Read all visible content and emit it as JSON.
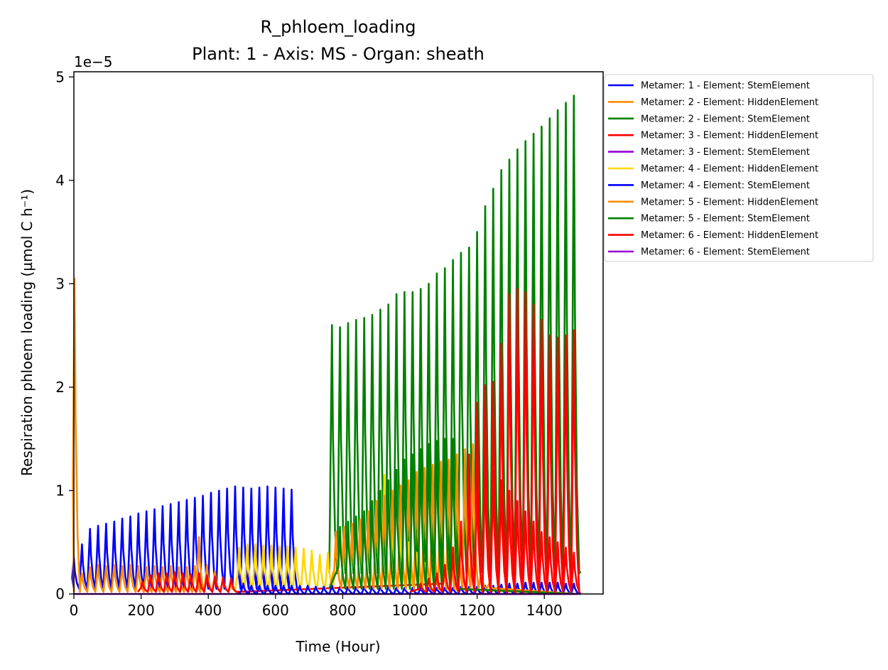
{
  "chart_data": {
    "type": "line",
    "title": "R_phloem_loading",
    "subtitle": "Plant: 1 - Axis: MS - Organ: sheath",
    "xlabel": "Time (Hour)",
    "ylabel": "Respiration phloem loading (µmol C h⁻¹)",
    "y_multiplier": "1e−5",
    "xlim": [
      0,
      1575
    ],
    "ylim": [
      0,
      5.05
    ],
    "x_ticks": [
      0,
      200,
      400,
      600,
      800,
      1000,
      1200,
      1400
    ],
    "x_tick_labels": [
      "0",
      "200",
      "400",
      "600",
      "800",
      "1000",
      "1200",
      "1400"
    ],
    "y_ticks": [
      0,
      1,
      2,
      3,
      4,
      5
    ],
    "y_tick_labels": [
      "0",
      "1",
      "2",
      "3",
      "4",
      "5"
    ],
    "grid": false,
    "legend_position": "outside-upper-right",
    "series": [
      {
        "name": "Metamer: 1 - Element: StemElement",
        "color": "#0000ff",
        "active": [
          0,
          660
        ],
        "peaks": [
          [
            0,
            0.35
          ],
          [
            24,
            0.48
          ],
          [
            48,
            0.63
          ],
          [
            72,
            0.66
          ],
          [
            96,
            0.68
          ],
          [
            120,
            0.7
          ],
          [
            144,
            0.73
          ],
          [
            168,
            0.75
          ],
          [
            192,
            0.78
          ],
          [
            216,
            0.8
          ],
          [
            240,
            0.82
          ],
          [
            264,
            0.85
          ],
          [
            288,
            0.87
          ],
          [
            312,
            0.89
          ],
          [
            336,
            0.91
          ],
          [
            360,
            0.93
          ],
          [
            384,
            0.95
          ],
          [
            408,
            0.98
          ],
          [
            432,
            1.0
          ],
          [
            456,
            1.02
          ],
          [
            480,
            1.04
          ],
          [
            504,
            1.03
          ],
          [
            528,
            1.02
          ],
          [
            552,
            1.03
          ],
          [
            576,
            1.04
          ],
          [
            600,
            1.03
          ],
          [
            624,
            1.02
          ],
          [
            648,
            1.01
          ]
        ],
        "trough": 0.05,
        "end": 0.0
      },
      {
        "name": "Metamer: 2 - Element: HiddenElement",
        "color": "#ff8c00",
        "active": [
          0,
          490
        ],
        "peaks": [
          [
            2,
            3.05
          ],
          [
            24,
            0.2
          ],
          [
            48,
            0.26
          ],
          [
            72,
            0.28
          ],
          [
            96,
            0.27
          ],
          [
            120,
            0.28
          ],
          [
            144,
            0.27
          ],
          [
            168,
            0.28
          ],
          [
            192,
            0.27
          ],
          [
            216,
            0.26
          ],
          [
            240,
            0.27
          ],
          [
            264,
            0.26
          ],
          [
            288,
            0.27
          ],
          [
            312,
            0.26
          ],
          [
            336,
            0.26
          ],
          [
            360,
            0.27
          ],
          [
            372,
            0.55
          ],
          [
            396,
            0.28
          ],
          [
            420,
            0.22
          ],
          [
            444,
            0.15
          ],
          [
            468,
            0.1
          ]
        ],
        "trough": 0.02,
        "end": 0.0
      },
      {
        "name": "Metamer: 2 - Element: StemElement",
        "color": "#008000",
        "active": [
          760,
          1500
        ],
        "peaks": [
          [
            768,
            2.6
          ],
          [
            792,
            2.58
          ],
          [
            816,
            2.62
          ],
          [
            840,
            2.65
          ],
          [
            864,
            2.67
          ],
          [
            888,
            2.7
          ],
          [
            912,
            2.75
          ],
          [
            936,
            2.8
          ],
          [
            960,
            2.9
          ],
          [
            984,
            2.92
          ],
          [
            1008,
            2.92
          ],
          [
            1032,
            2.95
          ],
          [
            1056,
            3.0
          ],
          [
            1080,
            3.1
          ],
          [
            1104,
            3.15
          ],
          [
            1128,
            3.23
          ],
          [
            1152,
            3.3
          ],
          [
            1176,
            3.35
          ],
          [
            1200,
            3.5
          ],
          [
            1224,
            3.75
          ],
          [
            1248,
            3.92
          ],
          [
            1272,
            4.1
          ],
          [
            1296,
            4.2
          ],
          [
            1320,
            4.3
          ],
          [
            1344,
            4.38
          ],
          [
            1368,
            4.45
          ],
          [
            1392,
            4.52
          ],
          [
            1416,
            4.6
          ],
          [
            1440,
            4.68
          ],
          [
            1464,
            4.75
          ],
          [
            1488,
            4.82
          ]
        ],
        "trough": 0.2,
        "end": 0.22
      },
      {
        "name": "Metamer: 3 - Element: HiddenElement",
        "color": "#ff0000",
        "active": [
          190,
          1500
        ],
        "peaks": [
          [
            204,
            0.12
          ],
          [
            228,
            0.18
          ],
          [
            252,
            0.2
          ],
          [
            276,
            0.2
          ],
          [
            300,
            0.21
          ],
          [
            324,
            0.2
          ],
          [
            348,
            0.19
          ],
          [
            372,
            0.2
          ],
          [
            396,
            0.18
          ],
          [
            420,
            0.17
          ],
          [
            444,
            0.16
          ],
          [
            468,
            0.15
          ],
          [
            1104,
            0.25
          ],
          [
            1128,
            0.45
          ],
          [
            1152,
            0.7
          ],
          [
            1176,
            1.35
          ],
          [
            1200,
            1.85
          ],
          [
            1224,
            2.02
          ],
          [
            1248,
            2.05
          ],
          [
            1272,
            2.42
          ],
          [
            1296,
            2.9
          ],
          [
            1320,
            2.95
          ],
          [
            1344,
            2.92
          ],
          [
            1368,
            2.8
          ],
          [
            1392,
            2.65
          ],
          [
            1416,
            2.5
          ],
          [
            1440,
            2.48
          ],
          [
            1464,
            2.5
          ],
          [
            1488,
            2.55
          ]
        ],
        "trough": 0.02,
        "end": 0.0
      },
      {
        "name": "Metamer: 3 - Element: StemElement",
        "color": "#9400d3",
        "active": [
          0,
          1500
        ],
        "peaks": [],
        "trough": 0.0,
        "end": 0.0
      },
      {
        "name": "Metamer: 4 - Element: HiddenElement",
        "color": "#ffd700",
        "active": [
          480,
          1500
        ],
        "peaks": [
          [
            492,
            0.45
          ],
          [
            516,
            0.48
          ],
          [
            540,
            0.48
          ],
          [
            564,
            0.47
          ],
          [
            588,
            0.47
          ],
          [
            612,
            0.46
          ],
          [
            636,
            0.46
          ],
          [
            660,
            0.45
          ],
          [
            684,
            0.44
          ],
          [
            708,
            0.42
          ],
          [
            732,
            0.38
          ],
          [
            756,
            0.4
          ],
          [
            780,
            0.6
          ],
          [
            804,
            0.62
          ],
          [
            828,
            0.64
          ],
          [
            852,
            0.66
          ],
          [
            876,
            0.72
          ],
          [
            900,
            0.86
          ],
          [
            924,
            1.15
          ],
          [
            948,
            0.75
          ],
          [
            972,
            0.65
          ],
          [
            996,
            0.5
          ],
          [
            1020,
            0.4
          ],
          [
            1044,
            0.3
          ]
        ],
        "trough": 0.05,
        "end": 0.0
      },
      {
        "name": "Metamer: 4 - Element: StemElement",
        "color": "#0000ff",
        "active": [
          490,
          1500
        ],
        "peaks": [
          [
            504,
            0.1
          ],
          [
            528,
            0.08
          ],
          [
            552,
            0.08
          ],
          [
            576,
            0.08
          ],
          [
            600,
            0.08
          ],
          [
            624,
            0.08
          ],
          [
            648,
            0.08
          ],
          [
            672,
            0.08
          ],
          [
            696,
            0.08
          ],
          [
            720,
            0.07
          ],
          [
            744,
            0.07
          ],
          [
            768,
            0.08
          ],
          [
            792,
            0.07
          ],
          [
            816,
            0.07
          ],
          [
            840,
            0.07
          ],
          [
            864,
            0.07
          ],
          [
            888,
            0.07
          ],
          [
            912,
            0.07
          ],
          [
            936,
            0.07
          ],
          [
            960,
            0.06
          ],
          [
            984,
            0.06
          ],
          [
            1008,
            0.06
          ],
          [
            1032,
            0.06
          ],
          [
            1056,
            0.06
          ],
          [
            1080,
            0.06
          ],
          [
            1104,
            0.06
          ],
          [
            1128,
            0.06
          ],
          [
            1152,
            0.07
          ],
          [
            1176,
            0.07
          ],
          [
            1200,
            0.07
          ],
          [
            1224,
            0.08
          ],
          [
            1248,
            0.08
          ],
          [
            1272,
            0.09
          ],
          [
            1296,
            0.1
          ],
          [
            1320,
            0.1
          ],
          [
            1344,
            0.11
          ],
          [
            1368,
            0.11
          ],
          [
            1392,
            0.11
          ],
          [
            1416,
            0.11
          ],
          [
            1440,
            0.11
          ],
          [
            1464,
            0.1
          ],
          [
            1488,
            0.1
          ]
        ],
        "trough": 0.0,
        "end": 0.0
      },
      {
        "name": "Metamer: 5 - Element: HiddenElement",
        "color": "#ff8c00",
        "active": [
          760,
          1500
        ],
        "peaks": [
          [
            780,
            0.6
          ],
          [
            804,
            0.65
          ],
          [
            828,
            0.68
          ],
          [
            852,
            0.72
          ],
          [
            876,
            0.8
          ],
          [
            900,
            0.9
          ],
          [
            924,
            0.95
          ],
          [
            948,
            1.0
          ],
          [
            972,
            1.05
          ],
          [
            996,
            1.1
          ],
          [
            1020,
            1.18
          ],
          [
            1044,
            1.22
          ],
          [
            1068,
            1.25
          ],
          [
            1092,
            1.28
          ],
          [
            1116,
            1.3
          ],
          [
            1140,
            1.35
          ],
          [
            1164,
            1.4
          ],
          [
            1188,
            1.45
          ],
          [
            1212,
            0.2
          ],
          [
            1236,
            0.1
          ],
          [
            1260,
            0.06
          ]
        ],
        "trough": 0.05,
        "end": 0.0
      },
      {
        "name": "Metamer: 5 - Element: StemElement",
        "color": "#008000",
        "active": [
          760,
          1500
        ],
        "peaks": [
          [
            792,
            0.65
          ],
          [
            816,
            0.7
          ],
          [
            840,
            0.75
          ],
          [
            864,
            0.8
          ],
          [
            888,
            0.9
          ],
          [
            912,
            1.0
          ],
          [
            936,
            1.1
          ],
          [
            960,
            1.2
          ],
          [
            984,
            1.3
          ],
          [
            1008,
            1.35
          ],
          [
            1032,
            1.4
          ],
          [
            1056,
            1.45
          ],
          [
            1080,
            1.48
          ],
          [
            1104,
            1.5
          ],
          [
            1128,
            1.5
          ]
        ],
        "trough": 0.05,
        "end": 0.0
      },
      {
        "name": "Metamer: 6 - Element: HiddenElement",
        "color": "#ff0000",
        "active": [
          1000,
          1500
        ],
        "peaks": [
          [
            1032,
            0.1
          ],
          [
            1056,
            0.15
          ],
          [
            1080,
            0.2
          ],
          [
            1104,
            0.28
          ],
          [
            1128,
            0.4
          ],
          [
            1152,
            0.6
          ],
          [
            1176,
            0.85
          ],
          [
            1200,
            1.1
          ],
          [
            1224,
            1.25
          ],
          [
            1248,
            1.2
          ],
          [
            1272,
            1.1
          ],
          [
            1296,
            1.0
          ],
          [
            1320,
            0.9
          ],
          [
            1344,
            0.8
          ],
          [
            1368,
            0.7
          ],
          [
            1392,
            0.6
          ],
          [
            1416,
            0.55
          ],
          [
            1440,
            0.5
          ],
          [
            1464,
            0.45
          ],
          [
            1488,
            0.4
          ]
        ],
        "trough": 0.02,
        "end": 0.0
      },
      {
        "name": "Metamer: 6 - Element: StemElement",
        "color": "#9400d3",
        "active": [
          1200,
          1500
        ],
        "peaks": [],
        "trough": 0.0,
        "end": 0.0
      }
    ]
  }
}
